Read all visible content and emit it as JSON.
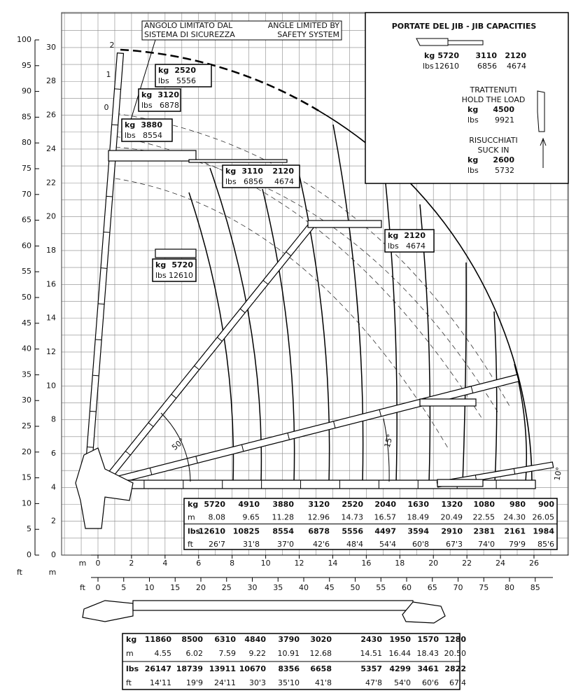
{
  "header": {
    "limit_it_1": "ANGOLO LIMITATO DAL",
    "limit_it_2": "SISTEMA DI SICUREZZA",
    "limit_en_1": "ANGLE LIMITED BY",
    "limit_en_2": "SAFETY SYSTEM"
  },
  "left_axis": {
    "ft_unit": "ft",
    "m_unit": "m",
    "ft_ticks": [
      0,
      5,
      10,
      15,
      20,
      25,
      30,
      35,
      40,
      45,
      50,
      55,
      60,
      65,
      70,
      75,
      80,
      85,
      90,
      95,
      100
    ],
    "m_ticks": [
      0,
      2,
      4,
      6,
      8,
      10,
      12,
      14,
      16,
      18,
      20,
      22,
      24,
      26,
      28,
      30
    ]
  },
  "bottom_axis": {
    "m_unit": "m",
    "ft_unit": "ft",
    "m_ticks": [
      0,
      2,
      4,
      6,
      8,
      10,
      12,
      14,
      16,
      18,
      20,
      22,
      24,
      26
    ],
    "ft_ticks": [
      0,
      5,
      10,
      15,
      20,
      25,
      30,
      35,
      40,
      45,
      50,
      55,
      60,
      65,
      70,
      75,
      80,
      85
    ]
  },
  "boom_labels": [
    "0",
    "1",
    "2"
  ],
  "angle_labels": [
    "50°",
    "15°",
    "10°"
  ],
  "load_boxes": [
    {
      "kg": "kg",
      "kg_values": [
        "2520"
      ],
      "lbs": "lbs",
      "lbs_values": [
        "5556"
      ]
    },
    {
      "kg": "kg",
      "kg_values": [
        "3120"
      ],
      "lbs": "lbs",
      "lbs_values": [
        "6878"
      ]
    },
    {
      "kg": "kg",
      "kg_values": [
        "3880"
      ],
      "lbs": "lbs",
      "lbs_values": [
        "8554"
      ]
    },
    {
      "kg": "kg",
      "kg_values": [
        "3110",
        "2120"
      ],
      "lbs": "lbs",
      "lbs_values": [
        "6856",
        "4674"
      ]
    },
    {
      "kg": "kg",
      "kg_values": [
        "5720"
      ],
      "lbs": "lbs",
      "lbs_values": [
        "12610"
      ]
    },
    {
      "kg": "kg",
      "kg_values": [
        "2120"
      ],
      "lbs": "lbs",
      "lbs_values": [
        "4674"
      ]
    }
  ],
  "jib_panel": {
    "title": "PORTATE DEL JIB  -  JIB CAPACITIES",
    "kg": "kg",
    "kg_values": [
      "5720",
      "3110",
      "2120"
    ],
    "lbs": "lbs",
    "lbs_values": [
      "12610",
      "6856",
      "4674"
    ],
    "hold_it": "TRATTENUTI",
    "hold_en": "HOLD THE LOAD",
    "hold_kg": [
      "kg",
      "4500"
    ],
    "hold_lbs": [
      "lbs",
      "9921"
    ],
    "suck_it": "RISUCCHIATI",
    "suck_en": "SUCK IN",
    "suck_kg": [
      "kg",
      "2600"
    ],
    "suck_lbs": [
      "lbs",
      "5732"
    ]
  },
  "table_boom": {
    "rows": [
      [
        "kg",
        "5720",
        "4910",
        "3880",
        "3120",
        "2520",
        "2040",
        "1630",
        "1320",
        "1080",
        "980",
        "900"
      ],
      [
        "m",
        "8.08",
        "9.65",
        "11.28",
        "12.96",
        "14.73",
        "16.57",
        "18.49",
        "20.49",
        "22.55",
        "24.30",
        "26.05"
      ],
      [
        "lbs",
        "12610",
        "10825",
        "8554",
        "6878",
        "5556",
        "4497",
        "3594",
        "2910",
        "2381",
        "2161",
        "1984"
      ],
      [
        "ft",
        "26'7",
        "31'8",
        "37'0",
        "42'6",
        "48'4",
        "54'4",
        "60'8",
        "67'3",
        "74'0",
        "79'9",
        "85'6"
      ]
    ]
  },
  "table_jib": {
    "rows": [
      [
        "kg",
        "11860",
        "8500",
        "6310",
        "4840",
        "3790",
        "3020",
        "2430",
        "1950",
        "1570",
        "1280"
      ],
      [
        "m",
        "4.55",
        "6.02",
        "7.59",
        "9.22",
        "10.91",
        "12.68",
        "14.51",
        "16.44",
        "18.43",
        "20.50"
      ],
      [
        "lbs",
        "26147",
        "18739",
        "13911",
        "10670",
        "8356",
        "6658",
        "5357",
        "4299",
        "3461",
        "2822"
      ],
      [
        "ft",
        "14'11",
        "19'9",
        "24'11",
        "30'3",
        "35'10",
        "41'8",
        "47'8",
        "54'0",
        "60'6",
        "67'4"
      ]
    ]
  }
}
